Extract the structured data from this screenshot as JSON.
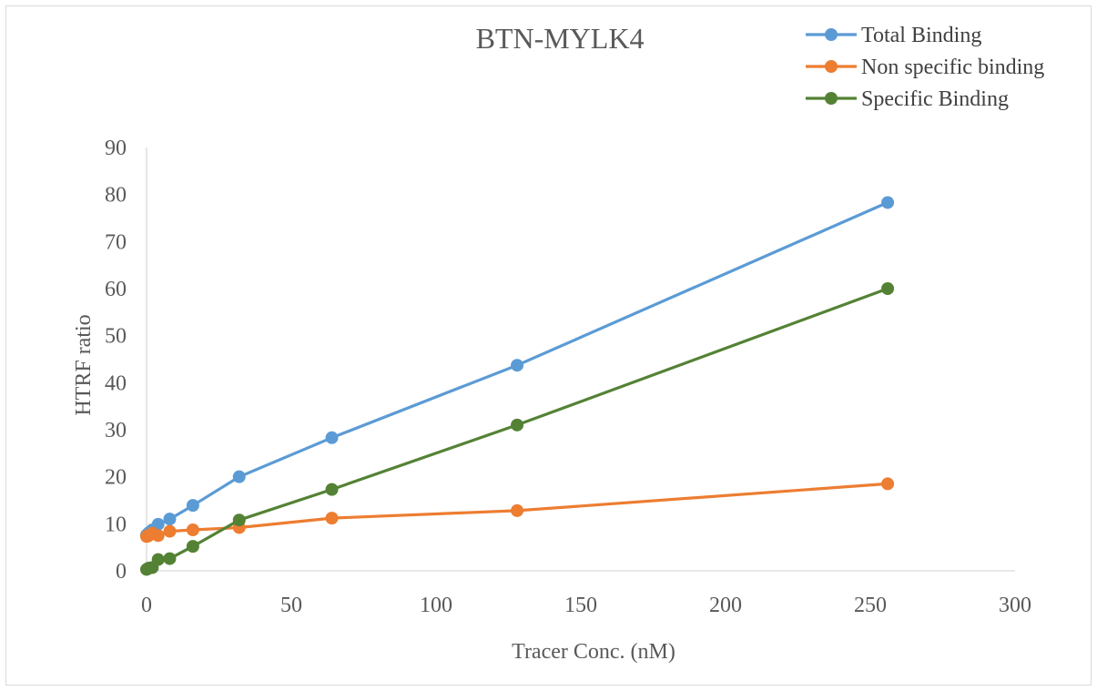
{
  "chart_data": {
    "type": "scatter",
    "title": "BTN-MYLK4",
    "xlabel": "Tracer Conc. (nM)",
    "ylabel": "HTRF ratio",
    "xlim": [
      0,
      300
    ],
    "ylim": [
      0,
      90
    ],
    "xticks": [
      0,
      50,
      100,
      150,
      200,
      250,
      300
    ],
    "yticks": [
      0,
      10,
      20,
      30,
      40,
      50,
      60,
      70,
      80,
      90
    ],
    "grid": false,
    "legend_position": "top-right",
    "series": [
      {
        "name": "Total Binding",
        "color": "#5b9bd5",
        "points": [
          [
            0,
            7.6
          ],
          [
            0.5,
            7.9
          ],
          [
            1,
            8.2
          ],
          [
            2,
            8.7
          ],
          [
            4,
            9.9
          ],
          [
            8,
            11.0
          ],
          [
            16,
            13.9
          ],
          [
            32,
            20.0
          ],
          [
            64,
            28.3
          ],
          [
            128,
            43.7
          ],
          [
            256,
            78.3
          ]
        ]
      },
      {
        "name": "Non specific binding",
        "color": "#ed7d31",
        "points": [
          [
            0,
            7.3
          ],
          [
            0.5,
            7.4
          ],
          [
            1,
            7.6
          ],
          [
            2,
            8.0
          ],
          [
            4,
            7.5
          ],
          [
            8,
            8.4
          ],
          [
            16,
            8.7
          ],
          [
            32,
            9.2
          ],
          [
            64,
            11.2
          ],
          [
            128,
            12.8
          ],
          [
            256,
            18.5
          ]
        ]
      },
      {
        "name": "Specific Binding",
        "color": "#548235",
        "points": [
          [
            0,
            0.3
          ],
          [
            0.5,
            0.5
          ],
          [
            1,
            0.6
          ],
          [
            2,
            0.7
          ],
          [
            4,
            2.4
          ],
          [
            8,
            2.6
          ],
          [
            16,
            5.2
          ],
          [
            32,
            10.8
          ],
          [
            64,
            17.3
          ],
          [
            128,
            31.0
          ],
          [
            256,
            60.0
          ]
        ]
      }
    ]
  }
}
